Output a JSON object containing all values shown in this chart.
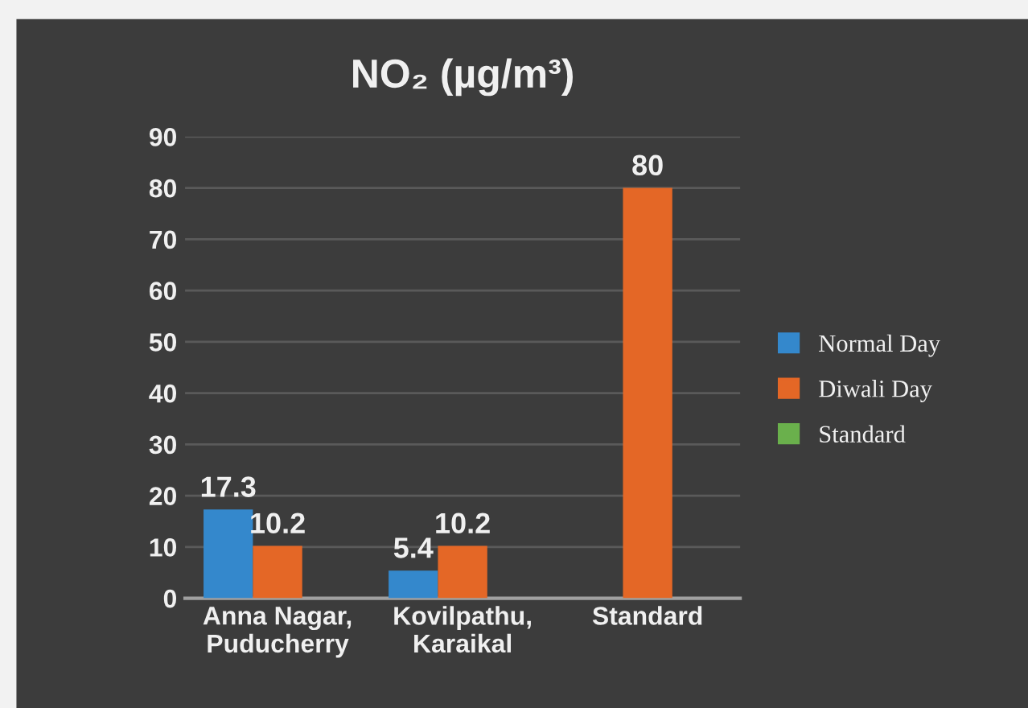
{
  "chart_data": {
    "type": "bar",
    "title": "NO₂ (µg/m³)",
    "categories": [
      "Anna Nagar,\nPuducherry",
      "Kovilpathu,\nKaraikal",
      "Standard"
    ],
    "series": [
      {
        "name": "Normal Day",
        "color": "#3488cc",
        "values": [
          17.3,
          5.4,
          null
        ]
      },
      {
        "name": "Diwali Day",
        "color": "#e46726",
        "values": [
          10.2,
          10.2,
          80
        ]
      },
      {
        "name": "Standard",
        "color": "#6ab04c",
        "values": [
          null,
          null,
          null
        ]
      }
    ],
    "ylim": [
      0,
      90
    ],
    "yticks": [
      0,
      10,
      20,
      30,
      40,
      50,
      60,
      70,
      80,
      90
    ],
    "grid": "y",
    "legend": "right",
    "data_labels": true
  }
}
